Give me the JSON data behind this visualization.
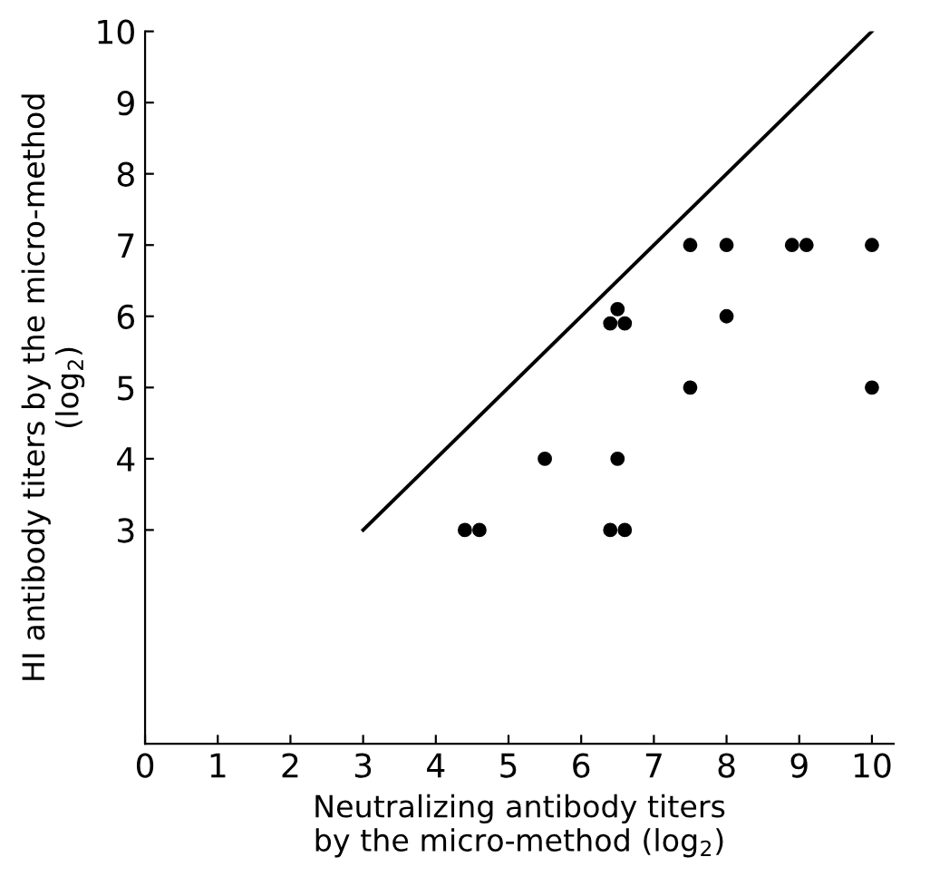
{
  "chart_data": {
    "type": "scatter",
    "xlabel": "Neutralizing antibody titers\nby the micro-method (log$_{2}$)",
    "ylabel": "HI antibody titers by the micro-method\n(log$_{2}$)",
    "series": [
      {
        "color": "#000000",
        "marker": "circle",
        "x": [
          4.4,
          4.6,
          5.5,
          6.4,
          6.6,
          6.5,
          6.4,
          6.5,
          6.6,
          7.5,
          7.5,
          8,
          8,
          8.9,
          9.1,
          10,
          10
        ],
        "values": [
          3,
          3,
          4,
          3,
          3,
          4,
          5.9,
          6.1,
          5.9,
          7,
          5,
          7,
          6,
          7,
          7,
          7,
          5
        ]
      },
      {
        "type": "line",
        "color": "#000000",
        "line_style": "solid",
        "x": [
          3,
          10
        ],
        "values": [
          3,
          10
        ]
      }
    ],
    "xlim": [
      0,
      10.3
    ],
    "ylim": [
      0,
      10
    ],
    "xticks": [
      0,
      1,
      2,
      3,
      4,
      5,
      6,
      7,
      8,
      9,
      10
    ],
    "yticks": [
      3,
      4,
      5,
      6,
      7,
      8,
      9,
      10
    ],
    "grid": false,
    "legend": false
  }
}
